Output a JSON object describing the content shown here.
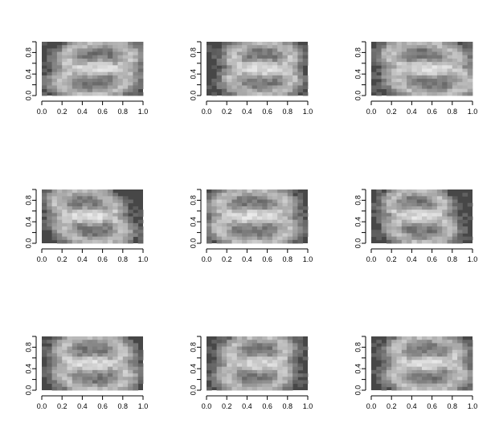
{
  "chart_data": {
    "type": "heatmap",
    "layout": "3x3 grid of image panels",
    "grid": false,
    "colormap": "grayscale",
    "background_color": "#474747",
    "digit_shown": "8",
    "xlim": [
      0.0,
      1.0
    ],
    "ylim": [
      0.0,
      1.0
    ],
    "x_ticks": [
      "0.0",
      "0.2",
      "0.4",
      "0.6",
      "0.8",
      "1.0"
    ],
    "y_ticks": [
      "0.0",
      "0.4",
      "0.8"
    ],
    "panels": [
      {
        "row": 1,
        "col": 1,
        "variant": 0
      },
      {
        "row": 1,
        "col": 2,
        "variant": 1
      },
      {
        "row": 1,
        "col": 3,
        "variant": 2
      },
      {
        "row": 2,
        "col": 1,
        "variant": 3
      },
      {
        "row": 2,
        "col": 2,
        "variant": 4
      },
      {
        "row": 2,
        "col": 3,
        "variant": 5
      },
      {
        "row": 3,
        "col": 1,
        "variant": 6
      },
      {
        "row": 3,
        "col": 2,
        "variant": 7
      },
      {
        "row": 3,
        "col": 3,
        "variant": 8
      }
    ]
  }
}
